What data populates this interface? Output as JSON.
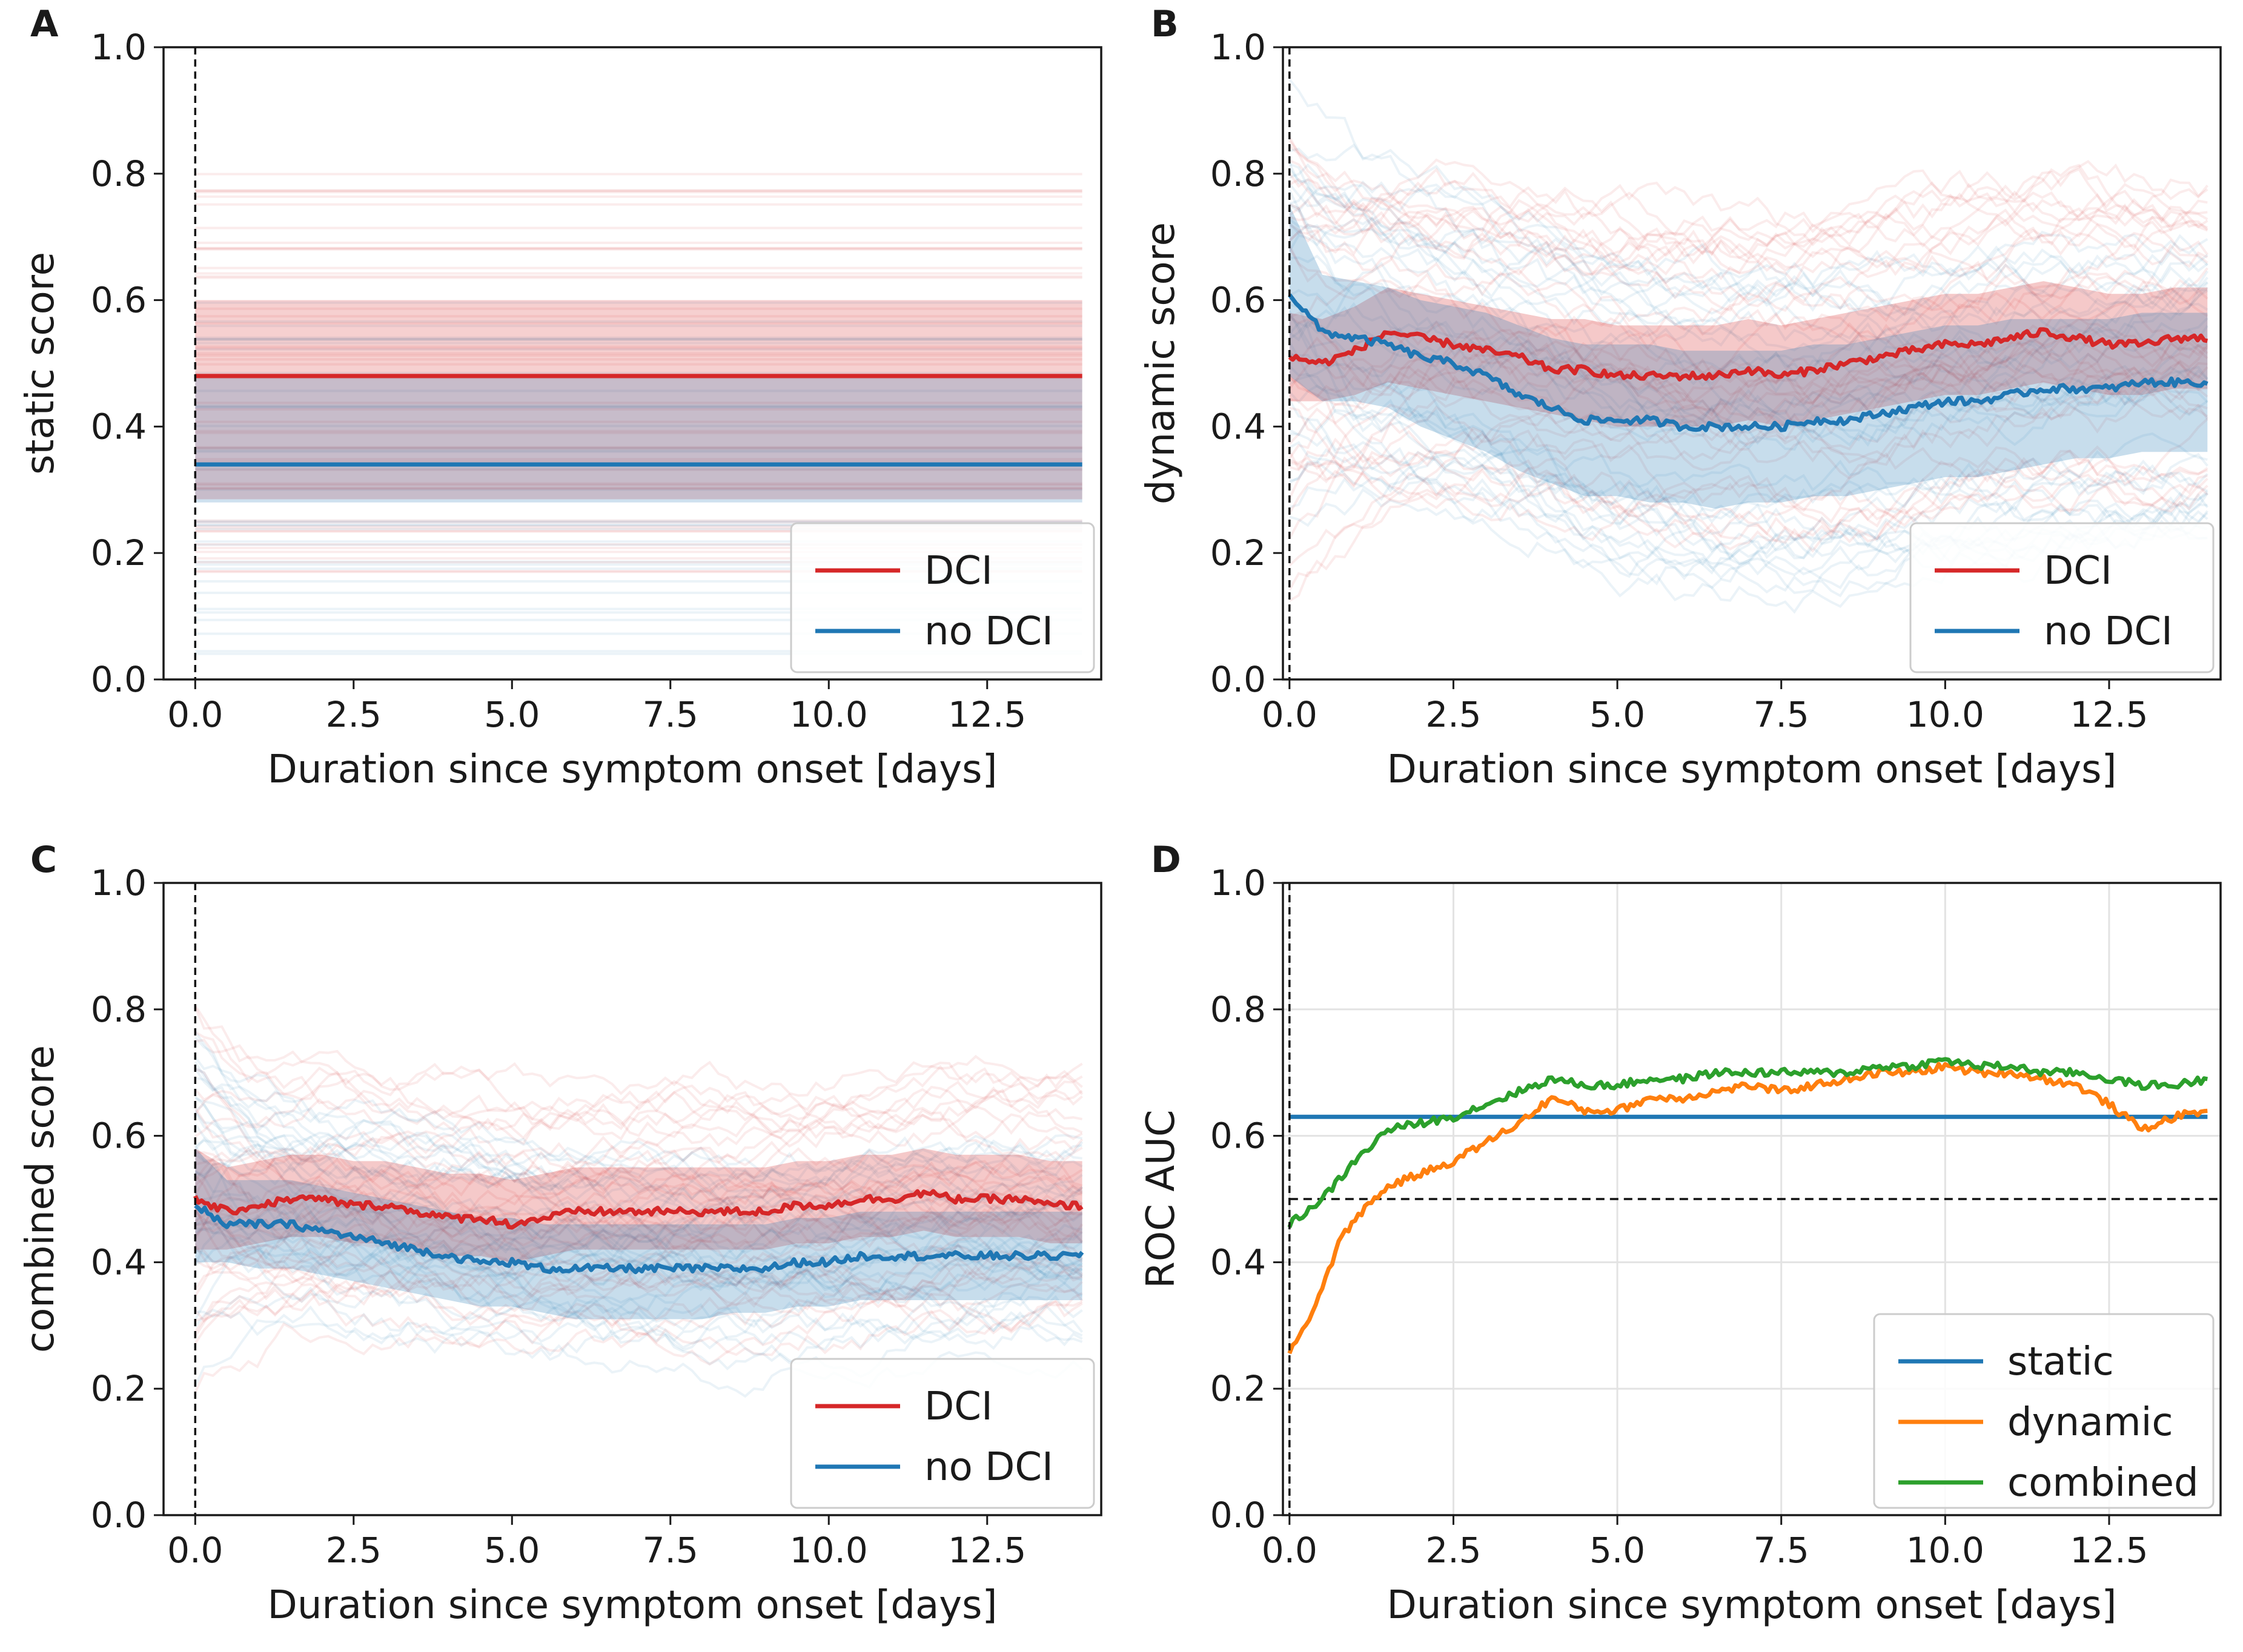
{
  "figure": {
    "panels": [
      "A",
      "B",
      "C",
      "D"
    ]
  },
  "chart_data": [
    {
      "panel": "A",
      "type": "line",
      "xlabel": "Duration since symptom onset [days]",
      "ylabel": "static score",
      "xlim": [
        -0.5,
        14.3
      ],
      "ylim": [
        0.0,
        1.0
      ],
      "xticks": [
        "0.0",
        "2.5",
        "5.0",
        "7.5",
        "10.0",
        "12.5"
      ],
      "yticks": [
        "0.0",
        "0.2",
        "0.4",
        "0.6",
        "0.8",
        "1.0"
      ],
      "onset_marker_x": 0.0,
      "legend": {
        "position": "lower-right",
        "entries": [
          "DCI",
          "no DCI"
        ]
      },
      "series": [
        {
          "name": "DCI",
          "color": "#d62728",
          "x": [
            0,
            14
          ],
          "y": [
            0.48,
            0.48
          ],
          "band": [
            0.285,
            0.6
          ]
        },
        {
          "name": "no DCI",
          "color": "#1f77b4",
          "x": [
            0,
            14
          ],
          "y": [
            0.34,
            0.34
          ],
          "band": [
            0.28,
            0.48
          ]
        }
      ]
    },
    {
      "panel": "B",
      "type": "line",
      "xlabel": "Duration since symptom onset [days]",
      "ylabel": "dynamic score",
      "xlim": [
        -0.1,
        14.2
      ],
      "ylim": [
        0.0,
        1.0
      ],
      "xticks": [
        "0.0",
        "2.5",
        "5.0",
        "7.5",
        "10.0",
        "12.5"
      ],
      "yticks": [
        "0.0",
        "0.2",
        "0.4",
        "0.6",
        "0.8",
        "1.0"
      ],
      "onset_marker_x": 0.0,
      "legend": {
        "position": "lower-right",
        "entries": [
          "DCI",
          "no DCI"
        ]
      },
      "series": [
        {
          "name": "DCI",
          "color": "#d62728",
          "x": [
            0,
            0.5,
            1,
            1.5,
            2,
            2.5,
            3,
            3.5,
            4,
            4.5,
            5,
            5.5,
            6,
            6.5,
            7,
            7.5,
            8,
            8.5,
            9,
            9.5,
            10,
            10.5,
            11,
            11.5,
            12,
            12.5,
            13,
            13.5,
            14
          ],
          "y": [
            0.51,
            0.5,
            0.52,
            0.55,
            0.54,
            0.53,
            0.52,
            0.51,
            0.49,
            0.49,
            0.48,
            0.48,
            0.48,
            0.48,
            0.49,
            0.48,
            0.49,
            0.5,
            0.51,
            0.52,
            0.53,
            0.53,
            0.54,
            0.55,
            0.54,
            0.53,
            0.53,
            0.54,
            0.54
          ],
          "band_lower": [
            0.44,
            0.44,
            0.45,
            0.47,
            0.46,
            0.45,
            0.44,
            0.43,
            0.42,
            0.41,
            0.4,
            0.4,
            0.4,
            0.4,
            0.41,
            0.4,
            0.41,
            0.42,
            0.43,
            0.44,
            0.45,
            0.45,
            0.46,
            0.47,
            0.46,
            0.45,
            0.45,
            0.46,
            0.46
          ],
          "band_upper": [
            0.58,
            0.57,
            0.59,
            0.62,
            0.61,
            0.6,
            0.59,
            0.58,
            0.57,
            0.57,
            0.56,
            0.56,
            0.56,
            0.56,
            0.57,
            0.56,
            0.57,
            0.58,
            0.59,
            0.6,
            0.61,
            0.61,
            0.62,
            0.63,
            0.62,
            0.61,
            0.61,
            0.62,
            0.62
          ]
        },
        {
          "name": "no DCI",
          "color": "#1f77b4",
          "x": [
            0,
            0.5,
            1,
            1.5,
            2,
            2.5,
            3,
            3.5,
            4,
            4.5,
            5,
            5.5,
            6,
            6.5,
            7,
            7.5,
            8,
            8.5,
            9,
            9.5,
            10,
            10.5,
            11,
            11.5,
            12,
            12.5,
            13,
            13.5,
            14
          ],
          "y": [
            0.61,
            0.55,
            0.54,
            0.53,
            0.51,
            0.5,
            0.48,
            0.45,
            0.43,
            0.41,
            0.41,
            0.41,
            0.4,
            0.4,
            0.4,
            0.4,
            0.41,
            0.41,
            0.42,
            0.43,
            0.44,
            0.44,
            0.45,
            0.46,
            0.46,
            0.46,
            0.47,
            0.47,
            0.47
          ],
          "band_lower": [
            0.48,
            0.44,
            0.44,
            0.43,
            0.4,
            0.38,
            0.36,
            0.33,
            0.31,
            0.29,
            0.29,
            0.28,
            0.28,
            0.27,
            0.28,
            0.28,
            0.29,
            0.29,
            0.3,
            0.31,
            0.32,
            0.32,
            0.33,
            0.34,
            0.35,
            0.35,
            0.36,
            0.36,
            0.36
          ],
          "band_upper": [
            0.75,
            0.64,
            0.63,
            0.62,
            0.6,
            0.59,
            0.58,
            0.56,
            0.54,
            0.53,
            0.53,
            0.53,
            0.52,
            0.52,
            0.52,
            0.52,
            0.53,
            0.53,
            0.54,
            0.55,
            0.56,
            0.56,
            0.57,
            0.57,
            0.57,
            0.57,
            0.58,
            0.58,
            0.58
          ]
        }
      ]
    },
    {
      "panel": "C",
      "type": "line",
      "xlabel": "Duration since symptom onset [days]",
      "ylabel": "combined score",
      "xlim": [
        -0.5,
        14.3
      ],
      "ylim": [
        0.0,
        1.0
      ],
      "xticks": [
        "0.0",
        "2.5",
        "5.0",
        "7.5",
        "10.0",
        "12.5"
      ],
      "yticks": [
        "0.0",
        "0.2",
        "0.4",
        "0.6",
        "0.8",
        "1.0"
      ],
      "onset_marker_x": 0.0,
      "legend": {
        "position": "lower-right",
        "entries": [
          "DCI",
          "no DCI"
        ]
      },
      "series": [
        {
          "name": "DCI",
          "color": "#d62728",
          "x": [
            0,
            0.5,
            1,
            1.5,
            2,
            2.5,
            3,
            3.5,
            4,
            4.5,
            5,
            5.5,
            6,
            6.5,
            7,
            7.5,
            8,
            8.5,
            9,
            9.5,
            10,
            10.5,
            11,
            11.5,
            12,
            12.5,
            13,
            13.5,
            14
          ],
          "y": [
            0.5,
            0.48,
            0.49,
            0.5,
            0.5,
            0.49,
            0.49,
            0.48,
            0.47,
            0.47,
            0.46,
            0.47,
            0.48,
            0.48,
            0.48,
            0.48,
            0.48,
            0.48,
            0.48,
            0.49,
            0.49,
            0.5,
            0.5,
            0.51,
            0.5,
            0.5,
            0.5,
            0.49,
            0.49
          ],
          "band_lower": [
            0.42,
            0.42,
            0.43,
            0.44,
            0.44,
            0.43,
            0.43,
            0.42,
            0.41,
            0.41,
            0.4,
            0.41,
            0.42,
            0.42,
            0.42,
            0.42,
            0.42,
            0.42,
            0.42,
            0.43,
            0.43,
            0.44,
            0.44,
            0.45,
            0.44,
            0.44,
            0.44,
            0.43,
            0.43
          ],
          "band_upper": [
            0.58,
            0.55,
            0.56,
            0.57,
            0.57,
            0.56,
            0.56,
            0.55,
            0.54,
            0.54,
            0.53,
            0.54,
            0.55,
            0.55,
            0.55,
            0.55,
            0.55,
            0.55,
            0.55,
            0.56,
            0.56,
            0.57,
            0.57,
            0.58,
            0.57,
            0.57,
            0.57,
            0.56,
            0.56
          ]
        },
        {
          "name": "no DCI",
          "color": "#1f77b4",
          "x": [
            0,
            0.5,
            1,
            1.5,
            2,
            2.5,
            3,
            3.5,
            4,
            4.5,
            5,
            5.5,
            6,
            6.5,
            7,
            7.5,
            8,
            8.5,
            9,
            9.5,
            10,
            10.5,
            11,
            11.5,
            12,
            12.5,
            13,
            13.5,
            14
          ],
          "y": [
            0.49,
            0.46,
            0.46,
            0.46,
            0.45,
            0.44,
            0.43,
            0.42,
            0.41,
            0.4,
            0.4,
            0.39,
            0.39,
            0.39,
            0.39,
            0.39,
            0.39,
            0.39,
            0.39,
            0.4,
            0.4,
            0.41,
            0.41,
            0.41,
            0.41,
            0.41,
            0.41,
            0.41,
            0.41
          ],
          "band_lower": [
            0.4,
            0.4,
            0.39,
            0.39,
            0.38,
            0.37,
            0.36,
            0.35,
            0.34,
            0.33,
            0.33,
            0.32,
            0.31,
            0.31,
            0.31,
            0.31,
            0.31,
            0.32,
            0.32,
            0.33,
            0.33,
            0.34,
            0.34,
            0.34,
            0.34,
            0.34,
            0.34,
            0.34,
            0.34
          ],
          "band_upper": [
            0.58,
            0.53,
            0.53,
            0.53,
            0.52,
            0.51,
            0.5,
            0.49,
            0.48,
            0.47,
            0.47,
            0.46,
            0.46,
            0.46,
            0.46,
            0.46,
            0.46,
            0.46,
            0.46,
            0.47,
            0.47,
            0.48,
            0.48,
            0.48,
            0.48,
            0.48,
            0.48,
            0.48,
            0.48
          ]
        }
      ]
    },
    {
      "panel": "D",
      "type": "line",
      "xlabel": "Duration since symptom onset [days]",
      "ylabel": "ROC AUC",
      "xlim": [
        -0.1,
        14.2
      ],
      "ylim": [
        0.0,
        1.0
      ],
      "xticks": [
        "0.0",
        "2.5",
        "5.0",
        "7.5",
        "10.0",
        "12.5"
      ],
      "yticks": [
        "0.0",
        "0.2",
        "0.4",
        "0.6",
        "0.8",
        "1.0"
      ],
      "grid": true,
      "onset_marker_x": 0.0,
      "reference_line_y": 0.5,
      "legend": {
        "position": "lower-right",
        "entries": [
          "static",
          "dynamic",
          "combined"
        ]
      },
      "series": [
        {
          "name": "static",
          "color": "#1f77b4",
          "x": [
            0,
            14
          ],
          "y": [
            0.63,
            0.63
          ]
        },
        {
          "name": "dynamic",
          "color": "#ff7f0e",
          "x": [
            0,
            0.25,
            0.5,
            0.75,
            1,
            1.5,
            2,
            2.5,
            3,
            3.5,
            4,
            4.5,
            5,
            5.5,
            6,
            6.5,
            7,
            7.5,
            8,
            8.5,
            9,
            9.5,
            10,
            10.5,
            11,
            11.5,
            12,
            12.5,
            13,
            13.5,
            14
          ],
          "y": [
            0.26,
            0.3,
            0.36,
            0.43,
            0.47,
            0.52,
            0.54,
            0.56,
            0.59,
            0.62,
            0.66,
            0.64,
            0.64,
            0.66,
            0.66,
            0.67,
            0.68,
            0.67,
            0.68,
            0.69,
            0.7,
            0.7,
            0.71,
            0.7,
            0.7,
            0.69,
            0.68,
            0.65,
            0.61,
            0.63,
            0.64
          ]
        },
        {
          "name": "combined",
          "color": "#2ca02c",
          "x": [
            0,
            0.25,
            0.5,
            0.75,
            1,
            1.5,
            2,
            2.5,
            3,
            3.5,
            4,
            4.5,
            5,
            5.5,
            6,
            6.5,
            7,
            7.5,
            8,
            8.5,
            9,
            9.5,
            10,
            10.5,
            11,
            11.5,
            12,
            12.5,
            13,
            13.5,
            14
          ],
          "y": [
            0.46,
            0.48,
            0.5,
            0.53,
            0.56,
            0.61,
            0.62,
            0.63,
            0.65,
            0.67,
            0.69,
            0.68,
            0.68,
            0.69,
            0.69,
            0.7,
            0.7,
            0.7,
            0.7,
            0.7,
            0.71,
            0.71,
            0.72,
            0.71,
            0.71,
            0.7,
            0.7,
            0.69,
            0.68,
            0.68,
            0.69
          ]
        }
      ]
    }
  ]
}
